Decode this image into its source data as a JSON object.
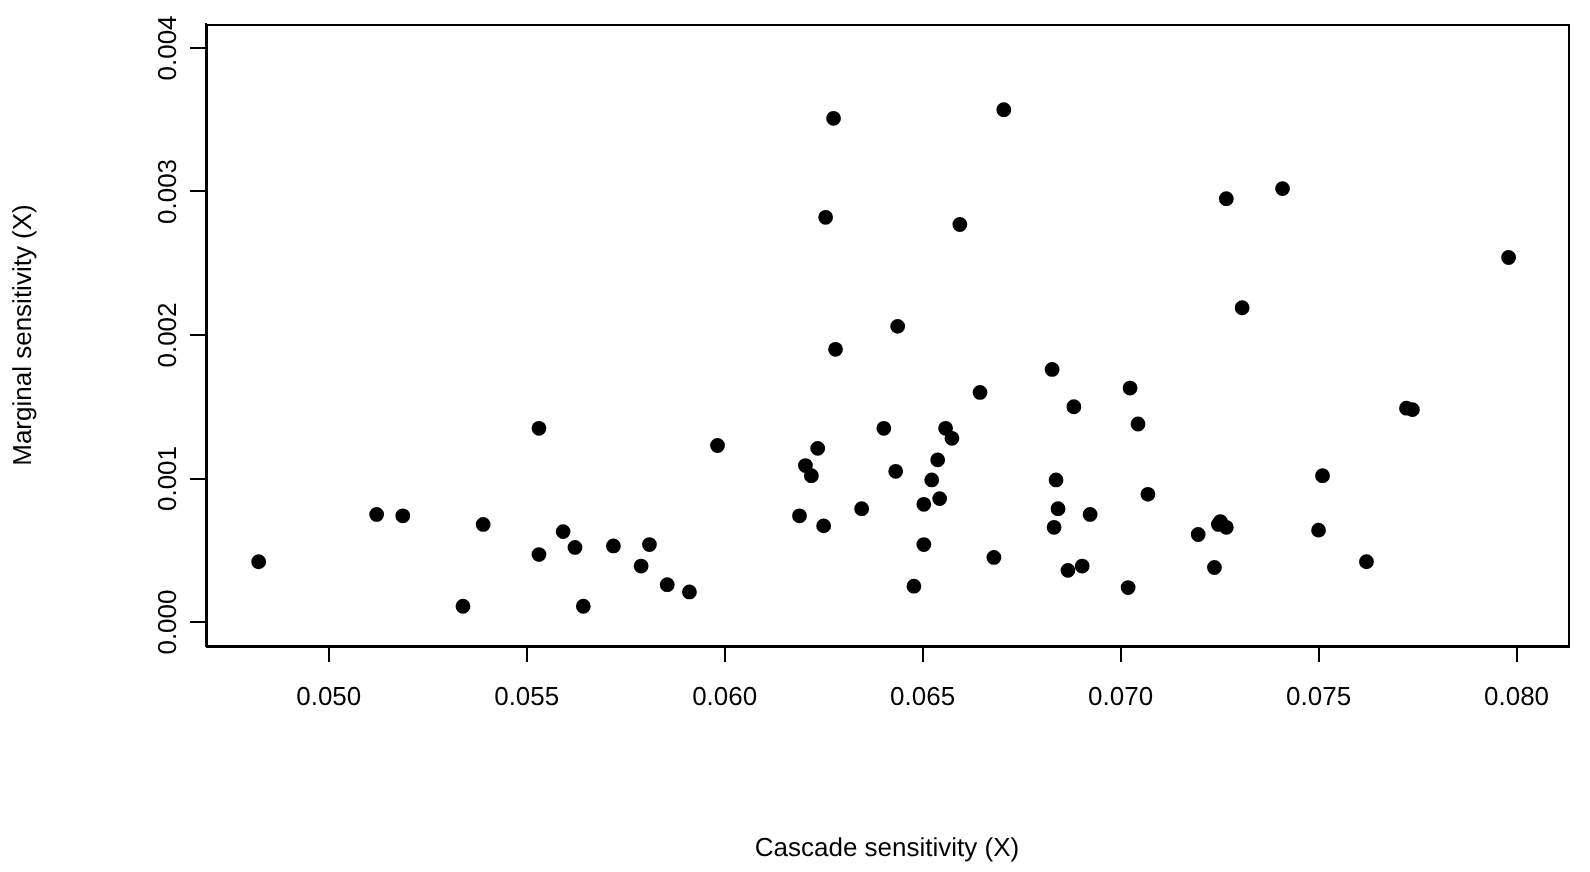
{
  "chart_data": {
    "type": "scatter",
    "xlabel": "Cascade sensitivity (X)",
    "ylabel": "Marginal sensitivity (X)",
    "x": [
      0.04823,
      0.05121,
      0.05187,
      0.0539,
      0.05339,
      0.05531,
      0.05531,
      0.05592,
      0.05622,
      0.05643,
      0.05719,
      0.05789,
      0.0581,
      0.05855,
      0.05911,
      0.05982,
      0.06189,
      0.06204,
      0.06219,
      0.06235,
      0.0625,
      0.06255,
      0.06275,
      0.0628,
      0.06346,
      0.06402,
      0.06432,
      0.06437,
      0.06478,
      0.06503,
      0.06503,
      0.06523,
      0.06538,
      0.06543,
      0.06558,
      0.06574,
      0.06594,
      0.06645,
      0.0668,
      0.06705,
      0.06827,
      0.06837,
      0.06832,
      0.06842,
      0.06867,
      0.06882,
      0.06903,
      0.06923,
      0.07019,
      0.07024,
      0.07044,
      0.07069,
      0.07196,
      0.07237,
      0.07247,
      0.07252,
      0.07267,
      0.07267,
      0.07307,
      0.07409,
      0.075,
      0.0751,
      0.07621,
      0.07722,
      0.07737,
      0.0798
    ],
    "series": [
      {
        "color": "#000000",
        "values": [
          0.00042,
          0.00075,
          0.00074,
          0.00068,
          0.00011,
          0.00135,
          0.00047,
          0.00063,
          0.00052,
          0.00011,
          0.00053,
          0.00039,
          0.00054,
          0.00026,
          0.00021,
          0.00123,
          0.00074,
          0.00109,
          0.00102,
          0.00121,
          0.00067,
          0.00282,
          0.00351,
          0.0019,
          0.00079,
          0.00135,
          0.00105,
          0.00206,
          0.00025,
          0.00054,
          0.00082,
          0.00099,
          0.00113,
          0.00086,
          0.00135,
          0.00128,
          0.00277,
          0.0016,
          0.00045,
          0.00357,
          0.00176,
          0.00099,
          0.00066,
          0.00079,
          0.00036,
          0.0015,
          0.00039,
          0.00075,
          0.00024,
          0.00163,
          0.00138,
          0.00089,
          0.00061,
          0.00038,
          0.00068,
          0.0007,
          0.00066,
          0.00295,
          0.00219,
          0.00302,
          0.00064,
          0.00102,
          0.00042,
          0.00149,
          0.00148,
          0.00254
        ]
      }
    ],
    "xlim": [
      0.0469,
      0.0813
    ],
    "ylim": [
      -0.000167,
      0.004167
    ],
    "xticks": [
      {
        "value": 0.05,
        "label": "0.050"
      },
      {
        "value": 0.055,
        "label": "0.055"
      },
      {
        "value": 0.06,
        "label": "0.060"
      },
      {
        "value": 0.065,
        "label": "0.065"
      },
      {
        "value": 0.07,
        "label": "0.070"
      },
      {
        "value": 0.075,
        "label": "0.075"
      },
      {
        "value": 0.08,
        "label": "0.080"
      }
    ],
    "yticks": [
      {
        "value": 0,
        "label": "0.000"
      },
      {
        "value": 0.001,
        "label": "0.001"
      },
      {
        "value": 0.002,
        "label": "0.002"
      },
      {
        "value": 0.003,
        "label": "0.003"
      },
      {
        "value": 0.004,
        "label": "0.004"
      }
    ],
    "marker": "circle",
    "grid": false,
    "legend": false
  }
}
